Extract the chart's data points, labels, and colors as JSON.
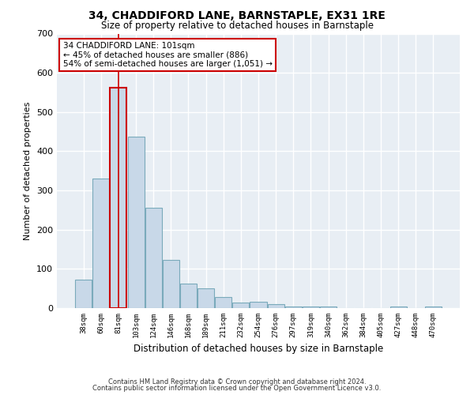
{
  "title_line1": "34, CHADDIFORD LANE, BARNSTAPLE, EX31 1RE",
  "title_line2": "Size of property relative to detached houses in Barnstaple",
  "xlabel": "Distribution of detached houses by size in Barnstaple",
  "ylabel": "Number of detached properties",
  "categories": [
    "38sqm",
    "60sqm",
    "81sqm",
    "103sqm",
    "124sqm",
    "146sqm",
    "168sqm",
    "189sqm",
    "211sqm",
    "232sqm",
    "254sqm",
    "276sqm",
    "297sqm",
    "319sqm",
    "340sqm",
    "362sqm",
    "384sqm",
    "405sqm",
    "427sqm",
    "448sqm",
    "470sqm"
  ],
  "values": [
    72,
    330,
    563,
    438,
    255,
    122,
    62,
    51,
    28,
    14,
    17,
    10,
    4,
    4,
    4,
    0,
    0,
    0,
    4,
    0,
    4
  ],
  "bar_color": "#c8d8e8",
  "bar_edge_color": "#7aaabb",
  "highlight_bar_index": 2,
  "highlight_bar_edge_color": "#cc0000",
  "annotation_box_text": "34 CHADDIFORD LANE: 101sqm\n← 45% of detached houses are smaller (886)\n54% of semi-detached houses are larger (1,051) →",
  "vline_x": 2,
  "ylim": [
    0,
    700
  ],
  "yticks": [
    0,
    100,
    200,
    300,
    400,
    500,
    600,
    700
  ],
  "background_color": "#e8eef4",
  "grid_color": "#ffffff",
  "footer_line1": "Contains HM Land Registry data © Crown copyright and database right 2024.",
  "footer_line2": "Contains public sector information licensed under the Open Government Licence v3.0."
}
